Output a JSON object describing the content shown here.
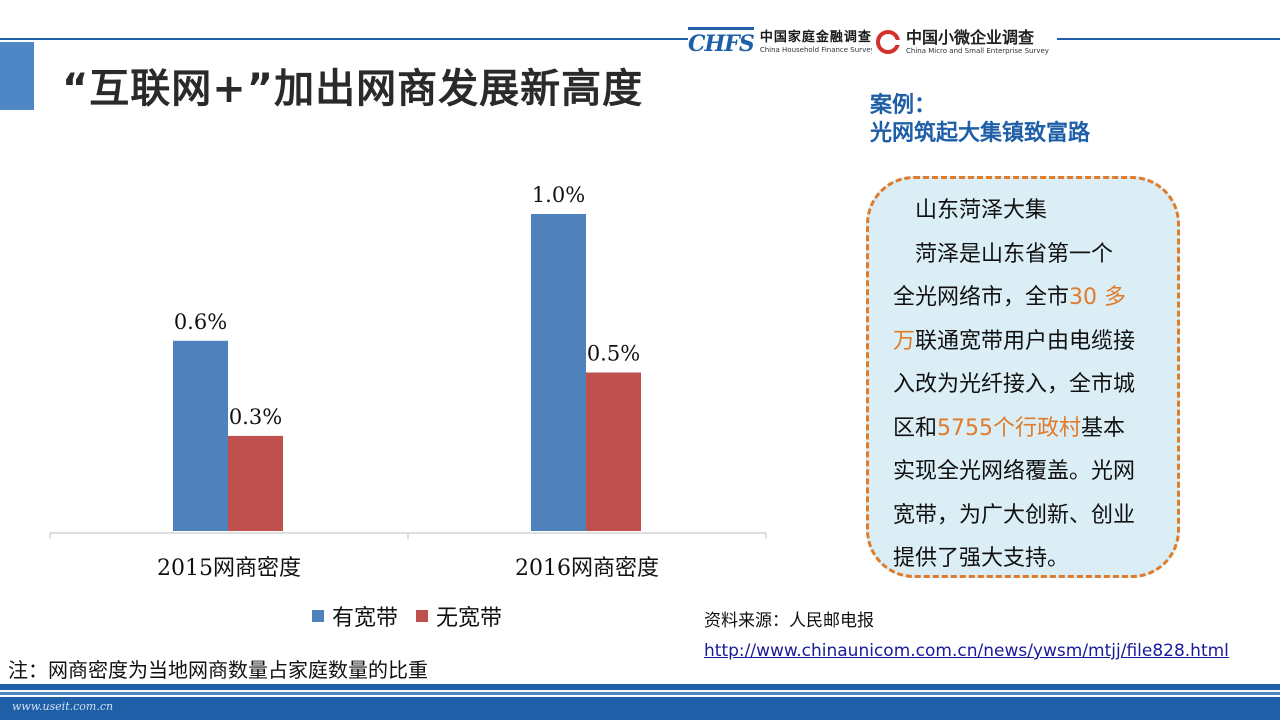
{
  "header": {
    "title": "“互联网+”加出网商发展新高度",
    "logo_chfs": {
      "mark": "CHFS",
      "cn": "中国家庭金融调查",
      "en": "China Household Finance Survey"
    },
    "logo_cmes": {
      "cn": "中国小微企业调查",
      "en": "China Micro and Small Enterprise Survey"
    }
  },
  "chart_data": {
    "type": "bar",
    "categories": [
      "2015网商密度",
      "2016网商密度"
    ],
    "series": [
      {
        "name": "有宽带",
        "values": [
          0.6,
          1.0
        ],
        "labels": [
          "0.6%",
          "1.0%"
        ],
        "color": "#4f81bd"
      },
      {
        "name": "无宽带",
        "values": [
          0.3,
          0.5
        ],
        "labels": [
          "0.3%",
          "0.5%"
        ],
        "color": "#c0504d"
      }
    ],
    "ylim": [
      0,
      1.2
    ],
    "grid": false,
    "legend": "bottom"
  },
  "note": "注：网商密度为当地网商数量占家庭数量的比重",
  "case": {
    "heading_line1": "案例：",
    "heading_line2": "光网筑起大集镇致富路",
    "place": "山东菏泽大集",
    "body": {
      "p1": "菏泽是山东省第一个",
      "p2": "全光网络市，全市",
      "hl1a": "30 多",
      "hl1b": "万",
      "p3": "联通宽带用户由电缆接",
      "p4": "入改为光纤接入，全市城",
      "p5": "区和",
      "hl2": "5755个行政村",
      "p6": "基本",
      "p7": "实现全光网络覆盖。光网",
      "p8": "宽带，为广大创新、创业",
      "p9": "提供了强大支持。"
    },
    "highlight_color": "#e07b2a"
  },
  "source": {
    "label": "资料来源：人民邮电报",
    "url": "http://www.chinaunicom.com.cn/news/ywsm/mtjj/file828.html"
  },
  "footer": {
    "watermark": "www.useit.com.cn"
  }
}
